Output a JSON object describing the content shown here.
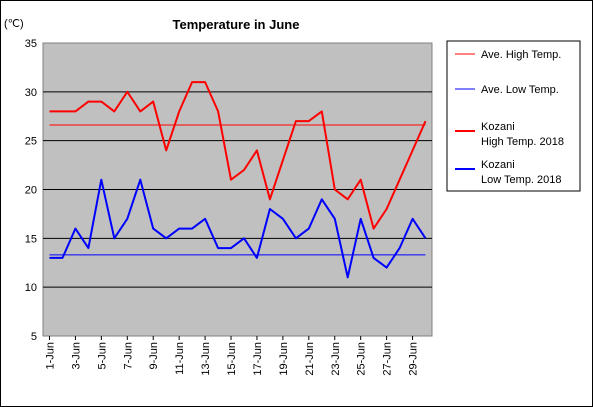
{
  "chart_data": {
    "type": "line",
    "title": "Temperature in June",
    "unit": "(℃)",
    "ylim": [
      5,
      35
    ],
    "yticks": [
      5,
      10,
      15,
      20,
      25,
      30,
      35
    ],
    "x": [
      1,
      2,
      3,
      4,
      5,
      6,
      7,
      8,
      9,
      10,
      11,
      12,
      13,
      14,
      15,
      16,
      17,
      18,
      19,
      20,
      21,
      22,
      23,
      24,
      25,
      26,
      27,
      28,
      29,
      30
    ],
    "xtick_labels": [
      "1-Jun",
      "3-Jun",
      "5-Jun",
      "7-Jun",
      "9-Jun",
      "11-Jun",
      "13-Jun",
      "15-Jun",
      "17-Jun",
      "19-Jun",
      "21-Jun",
      "23-Jun",
      "25-Jun",
      "27-Jun",
      "29-Jun"
    ],
    "grid": true,
    "legend_placement": "right",
    "series": [
      {
        "name": "Ave. High Temp.",
        "color": "#ff0000",
        "width": 1,
        "values": [
          26.6,
          26.6,
          26.6,
          26.6,
          26.6,
          26.6,
          26.6,
          26.6,
          26.6,
          26.6,
          26.6,
          26.6,
          26.6,
          26.6,
          26.6,
          26.6,
          26.6,
          26.6,
          26.6,
          26.6,
          26.6,
          26.6,
          26.6,
          26.6,
          26.6,
          26.6,
          26.6,
          26.6,
          26.6,
          26.6
        ]
      },
      {
        "name": "Ave. Low Temp.",
        "color": "#0000ff",
        "width": 1,
        "values": [
          13.3,
          13.3,
          13.3,
          13.3,
          13.3,
          13.3,
          13.3,
          13.3,
          13.3,
          13.3,
          13.3,
          13.3,
          13.3,
          13.3,
          13.3,
          13.3,
          13.3,
          13.3,
          13.3,
          13.3,
          13.3,
          13.3,
          13.3,
          13.3,
          13.3,
          13.3,
          13.3,
          13.3,
          13.3,
          13.3
        ]
      },
      {
        "name": "Kozani High Temp. 2018",
        "name_lines": [
          "Kozani",
          "High Temp. 2018"
        ],
        "color": "#ff0000",
        "width": 2,
        "values": [
          28,
          28,
          28,
          29,
          29,
          28,
          30,
          28,
          29,
          24,
          28,
          31,
          31,
          28,
          21,
          22,
          24,
          19,
          23,
          27,
          27,
          28,
          20,
          19,
          21,
          16,
          18,
          21,
          24,
          27
        ]
      },
      {
        "name": "Kozani Low Temp. 2018",
        "name_lines": [
          "Kozani",
          "Low Temp. 2018"
        ],
        "color": "#0000ff",
        "width": 2,
        "values": [
          13,
          13,
          16,
          14,
          21,
          15,
          17,
          21,
          16,
          15,
          16,
          16,
          17,
          14,
          14,
          15,
          13,
          18,
          17,
          15,
          16,
          19,
          17,
          11,
          17,
          13,
          12,
          14,
          17,
          15
        ]
      }
    ]
  }
}
